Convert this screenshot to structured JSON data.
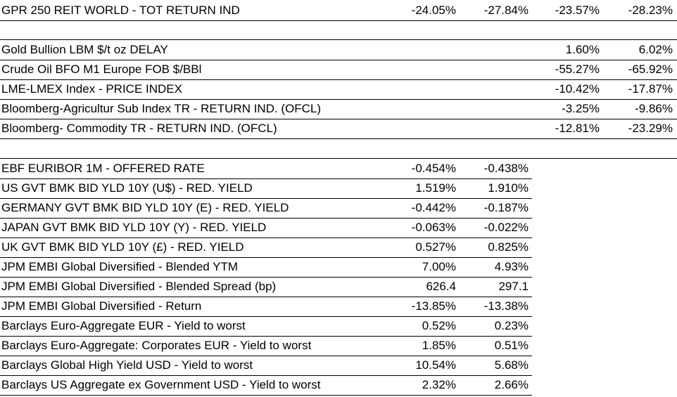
{
  "section_reit": [
    {
      "label": "GPR 250 REIT WORLD - TOT RETURN IND",
      "c1": "-24.05%",
      "c2": "-27.84%",
      "c3": "-23.57%",
      "c4": "-28.23%"
    }
  ],
  "section_commodities": [
    {
      "label": "Gold Bullion LBM $/t oz DELAY",
      "c1": "",
      "c2": "",
      "c3": "1.60%",
      "c4": "6.02%"
    },
    {
      "label": "Crude Oil BFO M1 Europe FOB $/BBl",
      "c1": "",
      "c2": "",
      "c3": "-55.27%",
      "c4": "-65.92%"
    },
    {
      "label": "LME-LMEX Index - PRICE INDEX",
      "c1": "",
      "c2": "",
      "c3": "-10.42%",
      "c4": "-17.87%"
    },
    {
      "label": "Bloomberg-Agricultur Sub Index TR - RETURN IND. (OFCL)",
      "c1": "",
      "c2": "",
      "c3": "-3.25%",
      "c4": "-9.86%"
    },
    {
      "label": "Bloomberg- Commodity TR - RETURN IND. (OFCL)",
      "c1": "",
      "c2": "",
      "c3": "-12.81%",
      "c4": "-23.29%"
    }
  ],
  "section_rates": [
    {
      "label": "EBF EURIBOR 1M - OFFERED RATE",
      "c1": "-0.454%",
      "c2": "-0.438%",
      "c3": "",
      "c4": ""
    },
    {
      "label": "US GVT BMK BID YLD 10Y (U$) - RED. YIELD",
      "c1": "1.519%",
      "c2": "1.910%",
      "c3": "",
      "c4": ""
    },
    {
      "label": "GERMANY GVT BMK BID YLD 10Y (E) - RED. YIELD",
      "c1": "-0.442%",
      "c2": "-0.187%",
      "c3": "",
      "c4": ""
    },
    {
      "label": "JAPAN GVT BMK BID YLD 10Y (Y) - RED. YIELD",
      "c1": "-0.063%",
      "c2": "-0.022%",
      "c3": "",
      "c4": ""
    },
    {
      "label": "UK GVT BMK BID YLD 10Y (£) - RED. YIELD",
      "c1": "0.527%",
      "c2": "0.825%",
      "c3": "",
      "c4": ""
    },
    {
      "label": "JPM EMBI Global Diversified - Blended YTM",
      "c1": "7.00%",
      "c2": "4.93%",
      "c3": "",
      "c4": ""
    },
    {
      "label": "JPM EMBI Global Diversified - Blended Spread (bp)",
      "c1": "626.4",
      "c2": "297.1",
      "c3": "",
      "c4": ""
    },
    {
      "label": "JPM EMBI Global Diversified - Return",
      "c1": "-13.85%",
      "c2": "-13.38%",
      "c3": "",
      "c4": ""
    },
    {
      "label": "Barclays Euro-Aggregate EUR - Yield to worst",
      "c1": "0.52%",
      "c2": "0.23%",
      "c3": "",
      "c4": ""
    },
    {
      "label": "Barclays Euro-Aggregate: Corporates EUR - Yield to worst",
      "c1": "1.85%",
      "c2": "0.51%",
      "c3": "",
      "c4": ""
    },
    {
      "label": "Barclays Global High Yield USD - Yield to worst",
      "c1": "10.54%",
      "c2": "5.68%",
      "c3": "",
      "c4": ""
    },
    {
      "label": "Barclays US Aggregate ex Government USD - Yield to worst",
      "c1": "2.32%",
      "c2": "2.66%",
      "c3": "",
      "c4": ""
    }
  ]
}
